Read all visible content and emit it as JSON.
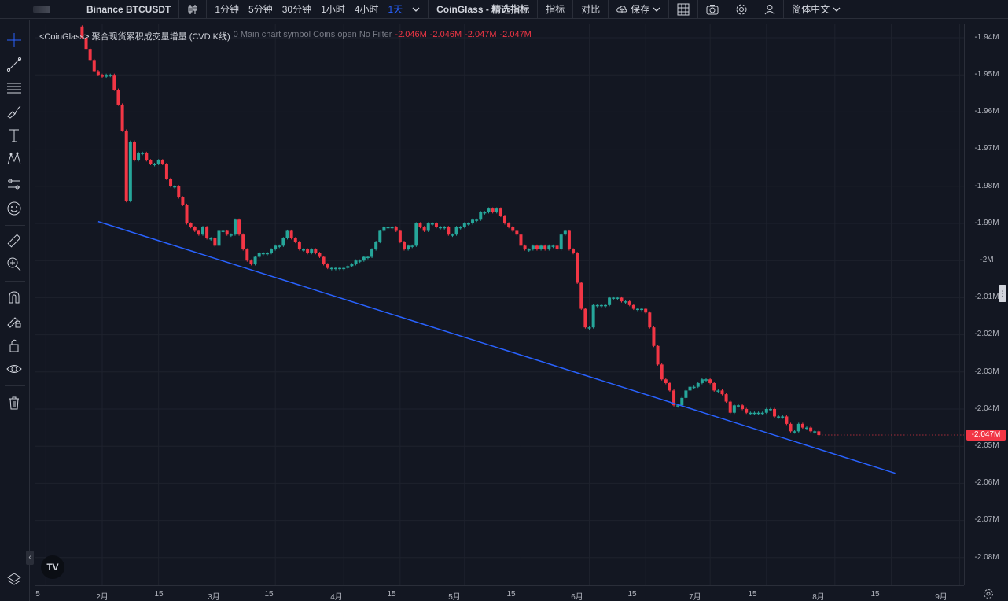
{
  "toolbar": {
    "symbol": "Binance BTCUSDT",
    "chart_type_icon": "candles-icon",
    "intervals": [
      "1分钟",
      "5分钟",
      "30分钟",
      "1小时",
      "4小时",
      "1天"
    ],
    "active_interval": "1天",
    "indicator_set": "CoinGlass - 精选指标",
    "indicators": "指标",
    "compare": "对比",
    "save": "保存",
    "language": "简体中文"
  },
  "left_tools": [
    "crosshair-icon",
    "trend-line-icon",
    "fib-lines-icon",
    "brush-icon",
    "text-icon",
    "pattern-icon",
    "forecast-icon",
    "emoji-icon",
    "ruler-icon",
    "zoom-icon",
    "magnet-icon",
    "lock-drawing-icon",
    "lock-icon",
    "eye-icon",
    "trash-icon",
    "layers-icon"
  ],
  "legend": {
    "name": "<CoinGlass> 聚合现货累积成交量增量 (CVD K线)",
    "params": "0 Main chart symbol Coins open No Filter",
    "values": [
      "-2.046M",
      "-2.046M",
      "-2.047M",
      "-2.047M"
    ]
  },
  "price_scale": {
    "labels": [
      "-1.94M",
      "-1.95M",
      "-1.96M",
      "-1.97M",
      "-1.98M",
      "-1.99M",
      "-2M",
      "-2.01M",
      "-2.02M",
      "-2.03M",
      "-2.04M",
      "-2.05M",
      "-2.06M",
      "-2.07M",
      "-2.08M"
    ],
    "last_price": "-2.047M"
  },
  "time_scale": {
    "labels": [
      "5",
      "2月",
      "15",
      "3月",
      "15",
      "4月",
      "15",
      "5月",
      "15",
      "6月",
      "15",
      "7月",
      "15",
      "8月",
      "15",
      "9月"
    ]
  },
  "colors": {
    "background": "#131722",
    "up": "#26a69a",
    "down": "#f23645",
    "trendline": "#2962ff",
    "grid": "#1e222d"
  },
  "chart_data": {
    "type": "candlestick",
    "unit": "M",
    "ylim": [
      -2.089,
      -1.938
    ],
    "trendline": {
      "from": {
        "date": "2024-01-31",
        "value": -1.9895
      },
      "to": {
        "date": "2024-08-16",
        "value": -2.0573
      }
    },
    "closes": [
      [
        -1.937,
        "2024-01-26"
      ],
      [
        -1.94,
        "2024-01-27"
      ],
      [
        -1.943,
        "2024-01-28"
      ],
      [
        -1.946,
        "2024-01-29"
      ],
      [
        -1.949,
        "2024-01-30"
      ],
      [
        -1.95,
        "2024-01-31"
      ],
      [
        -1.9505,
        "2024-02-01"
      ],
      [
        -1.95,
        "2024-02-02"
      ],
      [
        -1.95,
        "2024-02-03"
      ],
      [
        -1.954,
        "2024-02-04"
      ],
      [
        -1.958,
        "2024-02-05"
      ],
      [
        -1.965,
        "2024-02-06"
      ],
      [
        -1.984,
        "2024-02-07"
      ],
      [
        -1.968,
        "2024-02-08"
      ],
      [
        -1.973,
        "2024-02-09"
      ],
      [
        -1.971,
        "2024-02-10"
      ],
      [
        -1.971,
        "2024-02-11"
      ],
      [
        -1.973,
        "2024-02-12"
      ],
      [
        -1.974,
        "2024-02-13"
      ],
      [
        -1.974,
        "2024-02-14"
      ],
      [
        -1.973,
        "2024-02-15"
      ],
      [
        -1.974,
        "2024-02-16"
      ],
      [
        -1.978,
        "2024-02-17"
      ],
      [
        -1.98,
        "2024-02-18"
      ],
      [
        -1.98,
        "2024-02-19"
      ],
      [
        -1.983,
        "2024-02-20"
      ],
      [
        -1.985,
        "2024-02-21"
      ],
      [
        -1.99,
        "2024-02-22"
      ],
      [
        -1.991,
        "2024-02-23"
      ],
      [
        -1.992,
        "2024-02-24"
      ],
      [
        -1.993,
        "2024-02-25"
      ],
      [
        -1.991,
        "2024-02-26"
      ],
      [
        -1.994,
        "2024-02-27"
      ],
      [
        -1.994,
        "2024-02-28"
      ],
      [
        -1.996,
        "2024-02-29"
      ],
      [
        -1.992,
        "2024-03-01"
      ],
      [
        -1.992,
        "2024-03-02"
      ],
      [
        -1.993,
        "2024-03-03"
      ],
      [
        -1.993,
        "2024-03-04"
      ],
      [
        -1.989,
        "2024-03-05"
      ],
      [
        -1.993,
        "2024-03-06"
      ],
      [
        -1.997,
        "2024-03-07"
      ],
      [
        -2.0,
        "2024-03-08"
      ],
      [
        -2.001,
        "2024-03-09"
      ],
      [
        -1.999,
        "2024-03-10"
      ],
      [
        -1.998,
        "2024-03-11"
      ],
      [
        -1.998,
        "2024-03-12"
      ],
      [
        -1.998,
        "2024-03-13"
      ],
      [
        -1.997,
        "2024-03-14"
      ],
      [
        -1.996,
        "2024-03-15"
      ],
      [
        -1.996,
        "2024-03-16"
      ],
      [
        -1.994,
        "2024-03-17"
      ],
      [
        -1.992,
        "2024-03-18"
      ],
      [
        -1.994,
        "2024-03-19"
      ],
      [
        -1.995,
        "2024-03-20"
      ],
      [
        -1.997,
        "2024-03-21"
      ],
      [
        -1.997,
        "2024-03-22"
      ],
      [
        -1.998,
        "2024-03-23"
      ],
      [
        -1.997,
        "2024-03-24"
      ],
      [
        -1.998,
        "2024-03-25"
      ],
      [
        -1.999,
        "2024-03-26"
      ],
      [
        -2.001,
        "2024-03-27"
      ],
      [
        -2.002,
        "2024-03-28"
      ],
      [
        -2.002,
        "2024-03-29"
      ],
      [
        -2.002,
        "2024-03-30"
      ],
      [
        -2.002,
        "2024-03-31"
      ],
      [
        -2.002,
        "2024-04-01"
      ],
      [
        -2.0015,
        "2024-04-02"
      ],
      [
        -2.001,
        "2024-04-03"
      ],
      [
        -2.0,
        "2024-04-04"
      ],
      [
        -2.0,
        "2024-04-05"
      ],
      [
        -1.999,
        "2024-04-06"
      ],
      [
        -1.999,
        "2024-04-07"
      ],
      [
        -1.997,
        "2024-04-08"
      ],
      [
        -1.995,
        "2024-04-09"
      ],
      [
        -1.992,
        "2024-04-10"
      ],
      [
        -1.991,
        "2024-04-11"
      ],
      [
        -1.991,
        "2024-04-12"
      ],
      [
        -1.991,
        "2024-04-13"
      ],
      [
        -1.992,
        "2024-04-14"
      ],
      [
        -1.995,
        "2024-04-15"
      ],
      [
        -1.997,
        "2024-04-16"
      ],
      [
        -1.996,
        "2024-04-17"
      ],
      [
        -1.996,
        "2024-04-18"
      ],
      [
        -1.99,
        "2024-04-19"
      ],
      [
        -1.991,
        "2024-04-20"
      ],
      [
        -1.992,
        "2024-04-21"
      ],
      [
        -1.99,
        "2024-04-22"
      ],
      [
        -1.99,
        "2024-04-23"
      ],
      [
        -1.991,
        "2024-04-24"
      ],
      [
        -1.991,
        "2024-04-25"
      ],
      [
        -1.991,
        "2024-04-26"
      ],
      [
        -1.993,
        "2024-04-27"
      ],
      [
        -1.993,
        "2024-04-28"
      ],
      [
        -1.991,
        "2024-04-29"
      ],
      [
        -1.991,
        "2024-04-30"
      ],
      [
        -1.99,
        "2024-05-01"
      ],
      [
        -1.99,
        "2024-05-02"
      ],
      [
        -1.989,
        "2024-05-03"
      ],
      [
        -1.989,
        "2024-05-04"
      ],
      [
        -1.987,
        "2024-05-05"
      ],
      [
        -1.987,
        "2024-05-06"
      ],
      [
        -1.986,
        "2024-05-07"
      ],
      [
        -1.987,
        "2024-05-08"
      ],
      [
        -1.986,
        "2024-05-09"
      ],
      [
        -1.988,
        "2024-05-10"
      ],
      [
        -1.99,
        "2024-05-11"
      ],
      [
        -1.991,
        "2024-05-12"
      ],
      [
        -1.992,
        "2024-05-13"
      ],
      [
        -1.993,
        "2024-05-14"
      ],
      [
        -1.996,
        "2024-05-15"
      ],
      [
        -1.997,
        "2024-05-16"
      ],
      [
        -1.997,
        "2024-05-17"
      ],
      [
        -1.996,
        "2024-05-18"
      ],
      [
        -1.997,
        "2024-05-19"
      ],
      [
        -1.996,
        "2024-05-20"
      ],
      [
        -1.997,
        "2024-05-21"
      ],
      [
        -1.996,
        "2024-05-22"
      ],
      [
        -1.996,
        "2024-05-23"
      ],
      [
        -1.997,
        "2024-05-24"
      ],
      [
        -1.993,
        "2024-05-25"
      ],
      [
        -1.992,
        "2024-05-26"
      ],
      [
        -1.997,
        "2024-05-27"
      ],
      [
        -1.998,
        "2024-05-28"
      ],
      [
        -2.006,
        "2024-05-29"
      ],
      [
        -2.013,
        "2024-05-30"
      ],
      [
        -2.018,
        "2024-05-31"
      ],
      [
        -2.018,
        "2024-06-01"
      ],
      [
        -2.012,
        "2024-06-02"
      ],
      [
        -2.012,
        "2024-06-03"
      ],
      [
        -2.012,
        "2024-06-04"
      ],
      [
        -2.012,
        "2024-06-05"
      ],
      [
        -2.01,
        "2024-06-06"
      ],
      [
        -2.01,
        "2024-06-07"
      ],
      [
        -2.01,
        "2024-06-08"
      ],
      [
        -2.011,
        "2024-06-09"
      ],
      [
        -2.011,
        "2024-06-10"
      ],
      [
        -2.012,
        "2024-06-11"
      ],
      [
        -2.013,
        "2024-06-12"
      ],
      [
        -2.013,
        "2024-06-13"
      ],
      [
        -2.013,
        "2024-06-14"
      ],
      [
        -2.014,
        "2024-06-15"
      ],
      [
        -2.018,
        "2024-06-16"
      ],
      [
        -2.023,
        "2024-06-17"
      ],
      [
        -2.028,
        "2024-06-18"
      ],
      [
        -2.032,
        "2024-06-19"
      ],
      [
        -2.033,
        "2024-06-20"
      ],
      [
        -2.035,
        "2024-06-21"
      ],
      [
        -2.039,
        "2024-06-22"
      ],
      [
        -2.039,
        "2024-06-23"
      ],
      [
        -2.037,
        "2024-06-24"
      ],
      [
        -2.035,
        "2024-06-25"
      ],
      [
        -2.034,
        "2024-06-26"
      ],
      [
        -2.034,
        "2024-06-27"
      ],
      [
        -2.033,
        "2024-06-28"
      ],
      [
        -2.032,
        "2024-06-29"
      ],
      [
        -2.032,
        "2024-06-30"
      ],
      [
        -2.033,
        "2024-07-01"
      ],
      [
        -2.035,
        "2024-07-02"
      ],
      [
        -2.035,
        "2024-07-03"
      ],
      [
        -2.036,
        "2024-07-04"
      ],
      [
        -2.038,
        "2024-07-05"
      ],
      [
        -2.041,
        "2024-07-06"
      ],
      [
        -2.039,
        "2024-07-07"
      ],
      [
        -2.039,
        "2024-07-08"
      ],
      [
        -2.04,
        "2024-07-09"
      ],
      [
        -2.041,
        "2024-07-10"
      ],
      [
        -2.041,
        "2024-07-11"
      ],
      [
        -2.041,
        "2024-07-12"
      ],
      [
        -2.041,
        "2024-07-13"
      ],
      [
        -2.041,
        "2024-07-14"
      ],
      [
        -2.04,
        "2024-07-15"
      ],
      [
        -2.04,
        "2024-07-16"
      ],
      [
        -2.042,
        "2024-07-17"
      ],
      [
        -2.042,
        "2024-07-18"
      ],
      [
        -2.042,
        "2024-07-19"
      ],
      [
        -2.044,
        "2024-07-20"
      ],
      [
        -2.046,
        "2024-07-21"
      ],
      [
        -2.046,
        "2024-07-22"
      ],
      [
        -2.044,
        "2024-07-23"
      ],
      [
        -2.045,
        "2024-07-24"
      ],
      [
        -2.045,
        "2024-07-25"
      ],
      [
        -2.046,
        "2024-07-26"
      ],
      [
        -2.046,
        "2024-07-27"
      ],
      [
        -2.047,
        "2024-07-28"
      ]
    ]
  }
}
